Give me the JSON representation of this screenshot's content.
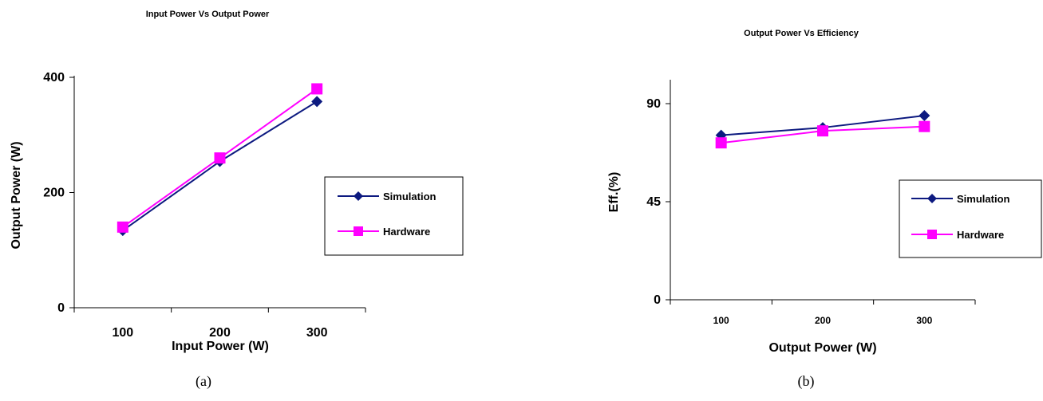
{
  "colors": {
    "simulation": "#0d1a80",
    "hardware": "#ff00ff",
    "axis": "#000000"
  },
  "chart_data": [
    {
      "type": "line",
      "title": "Input Power Vs Output Power",
      "xlabel": "Input Power (W)",
      "ylabel": "Output Power (W)",
      "categories": [
        "100",
        "200",
        "300"
      ],
      "ylim": [
        0,
        400
      ],
      "yticks": [
        "0",
        "200",
        "400"
      ],
      "series": [
        {
          "name": "Simulation",
          "marker": "diamond",
          "values": [
            134,
            254,
            358
          ]
        },
        {
          "name": "Hardware",
          "marker": "square",
          "values": [
            140,
            260,
            380
          ]
        }
      ],
      "legend": "right",
      "caption": "(a)",
      "grid": false
    },
    {
      "type": "line",
      "title": "Output Power Vs Efficiency",
      "xlabel": "Output Power (W)",
      "ylabel": "Eff.(%)",
      "categories": [
        "100",
        "200",
        "300"
      ],
      "ylim": [
        0,
        90
      ],
      "yticks": [
        "0",
        "45",
        "90"
      ],
      "series": [
        {
          "name": "Simulation",
          "marker": "diamond",
          "values": [
            75.5,
            79,
            84.5
          ]
        },
        {
          "name": "Hardware",
          "marker": "square",
          "values": [
            72,
            77.5,
            79.5
          ]
        }
      ],
      "legend": "right",
      "caption": "(b)",
      "grid": false
    }
  ]
}
